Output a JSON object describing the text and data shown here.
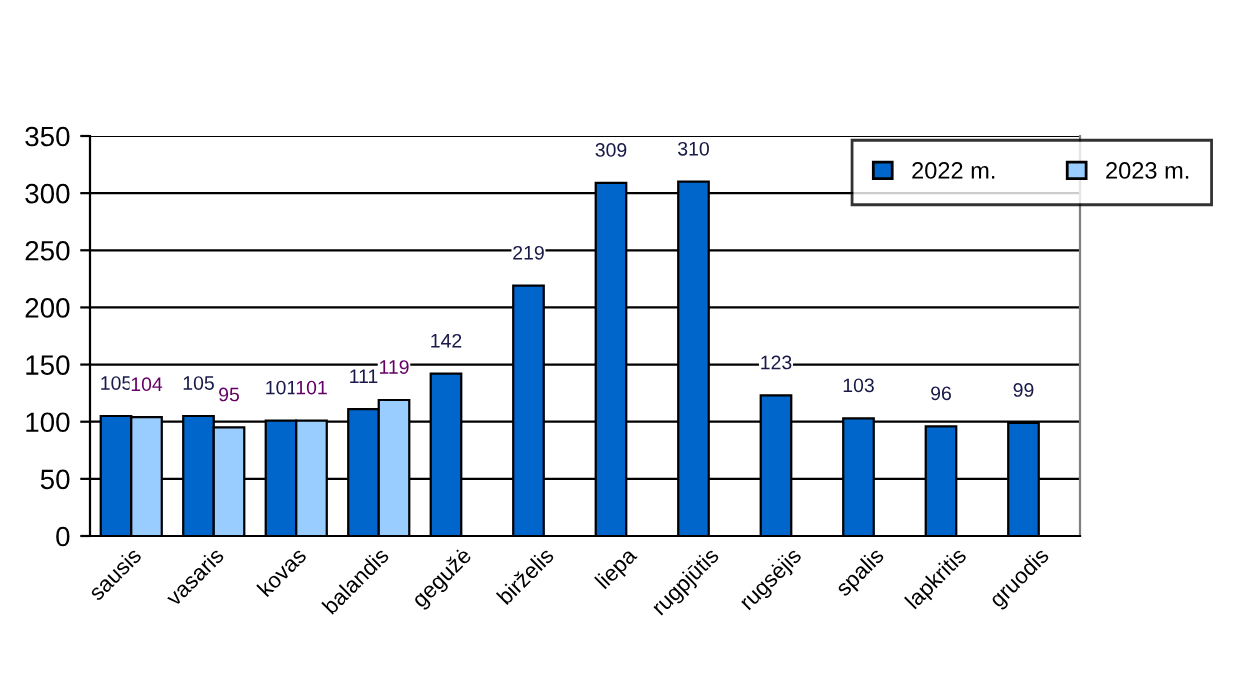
{
  "chart_data": {
    "type": "bar",
    "categories": [
      "sausis",
      "vasaris",
      "kovas",
      "balandis",
      "gegužė",
      "birželis",
      "liepa",
      "rugpjūtis",
      "rugsėjis",
      "spalis",
      "lapkritis",
      "gruodis"
    ],
    "series": [
      {
        "name": "2022 m.",
        "color": "#0066cc",
        "values": [
          105,
          105,
          101,
          111,
          142,
          219,
          309,
          310,
          123,
          103,
          96,
          99
        ]
      },
      {
        "name": "2023 m.",
        "color": "#99ccff",
        "values": [
          104,
          95,
          101,
          119,
          null,
          null,
          null,
          null,
          null,
          null,
          null,
          null
        ]
      }
    ],
    "ylim": [
      0,
      350
    ],
    "yticks": [
      0,
      50,
      100,
      150,
      200,
      250,
      300,
      350
    ],
    "grid": "y",
    "legend": "top right",
    "data_labels": true
  }
}
